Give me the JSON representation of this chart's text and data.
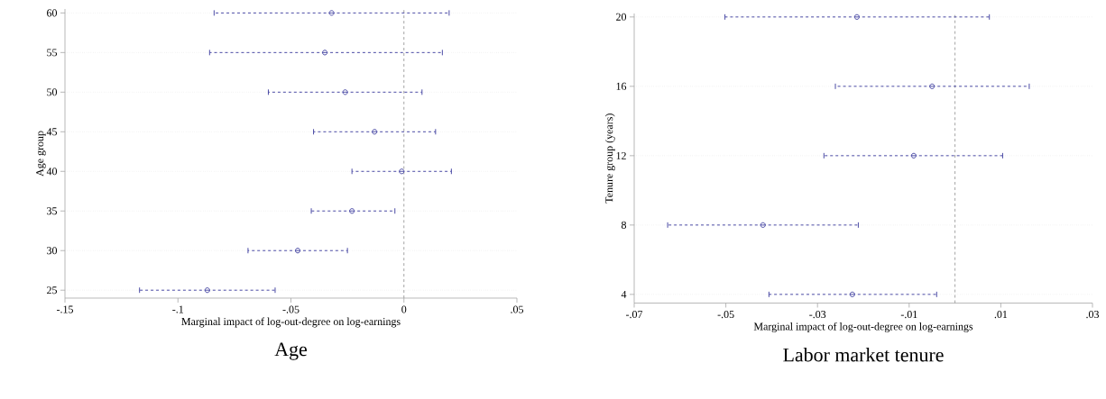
{
  "chart_data": [
    {
      "type": "scatter",
      "title": "Age",
      "xlabel": "Marginal impact of log-out-degree on log-earnings",
      "ylabel": "Age group",
      "xlim": [
        -0.15,
        0.05
      ],
      "xticks": [
        {
          "value": -0.15,
          "label": "-.15"
        },
        {
          "value": -0.1,
          "label": "-.1"
        },
        {
          "value": -0.05,
          "label": "-.05"
        },
        0,
        {
          "value": 0.05,
          "label": ".05"
        }
      ],
      "ylim": [
        24,
        60.5
      ],
      "yticks": [
        25,
        30,
        35,
        40,
        45,
        50,
        55,
        60
      ],
      "grid": "y",
      "marker": "circle",
      "line_style": "dashed",
      "ref_lines": [
        {
          "axis": "x",
          "value": 0,
          "color": "#999999",
          "line_style": "dashed"
        }
      ],
      "series": [
        {
          "color": "#4b4ba6",
          "x": [
            -0.032,
            -0.035,
            -0.026,
            -0.013,
            -0.001,
            -0.023,
            -0.047,
            -0.087
          ],
          "values": [
            60,
            55,
            50,
            45,
            40,
            35,
            30,
            25
          ],
          "xerrors": [
            [
              -0.084,
              0.02
            ],
            [
              -0.086,
              0.017
            ],
            [
              -0.06,
              0.008
            ],
            [
              -0.04,
              0.014
            ],
            [
              -0.023,
              0.021
            ],
            [
              -0.041,
              -0.004
            ],
            [
              -0.069,
              -0.025
            ],
            [
              -0.117,
              -0.057
            ]
          ]
        }
      ]
    },
    {
      "type": "scatter",
      "title": "Labor market tenure",
      "xlabel": "Marginal impact of log-out-degree on log-earnings",
      "ylabel": "Tenure group (years)",
      "xlim": [
        -0.07,
        0.03
      ],
      "xticks": [
        {
          "value": -0.07,
          "label": "-.07"
        },
        {
          "value": -0.05,
          "label": "-.05"
        },
        {
          "value": -0.03,
          "label": "-.03"
        },
        {
          "value": -0.01,
          "label": "-.01"
        },
        {
          "value": 0.01,
          "label": ".01"
        },
        {
          "value": 0.03,
          "label": ".03"
        }
      ],
      "ylim": [
        3.5,
        20.2
      ],
      "yticks": [
        4,
        8,
        12,
        16,
        20
      ],
      "grid": "y",
      "marker": "circle",
      "line_style": "dashed",
      "ref_lines": [
        {
          "axis": "x",
          "value": 0,
          "color": "#999999",
          "line_style": "dashed"
        }
      ],
      "series": [
        {
          "color": "#4b4ba6",
          "x": [
            -0.0214,
            -0.005,
            -0.009,
            -0.0419,
            -0.0224
          ],
          "values": [
            20,
            16,
            12,
            8,
            4
          ],
          "xerrors": [
            [
              -0.0502,
              0.0075
            ],
            [
              -0.0261,
              0.0162
            ],
            [
              -0.0286,
              0.0104
            ],
            [
              -0.0627,
              -0.0211
            ],
            [
              -0.0406,
              -0.004
            ]
          ]
        }
      ]
    }
  ]
}
